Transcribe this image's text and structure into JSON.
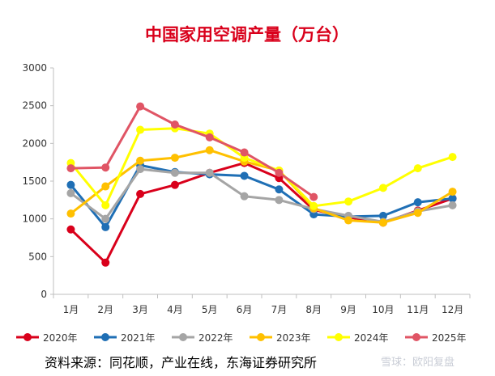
{
  "chart_data": {
    "type": "line",
    "title": "中国家用空调产量（万台）",
    "categories": [
      "1月",
      "2月",
      "3月",
      "4月",
      "5月",
      "6月",
      "7月",
      "8月",
      "9月",
      "10月",
      "11月",
      "12月"
    ],
    "ylim": [
      0,
      3000
    ],
    "yticks": [
      0,
      500,
      1000,
      1500,
      2000,
      2500,
      3000
    ],
    "ytick_labels": [
      "0",
      "500",
      "1000",
      "1500",
      "2000",
      "2500",
      "3000"
    ],
    "xlabel": "",
    "ylabel": "",
    "grid": false,
    "legend_position": "bottom",
    "series": [
      {
        "name": "2020年",
        "color": "#d9001b",
        "values": [
          860,
          420,
          1330,
          1450,
          1610,
          1740,
          1540,
          1120,
          1020,
          950,
          1110,
          1270
        ]
      },
      {
        "name": "2021年",
        "color": "#1f6fb5",
        "values": [
          1450,
          890,
          1710,
          1620,
          1590,
          1570,
          1390,
          1060,
          1030,
          1040,
          1220,
          1270
        ]
      },
      {
        "name": "2022年",
        "color": "#a5a5a5",
        "values": [
          1340,
          1000,
          1660,
          1610,
          1610,
          1300,
          1250,
          1130,
          1040,
          960,
          1100,
          1180
        ]
      },
      {
        "name": "2023年",
        "color": "#ffc000",
        "values": [
          1070,
          1430,
          1770,
          1810,
          1910,
          1760,
          1640,
          1140,
          980,
          950,
          1080,
          1360
        ]
      },
      {
        "name": "2024年",
        "color": "#ffff00",
        "values": [
          1740,
          1180,
          2180,
          2200,
          2130,
          1810,
          1640,
          1170,
          1230,
          1410,
          1670,
          1820
        ]
      },
      {
        "name": "2025年",
        "color": "#e05565",
        "values": [
          1670,
          1680,
          2490,
          2250,
          2080,
          1880,
          1610,
          1290,
          null,
          null,
          null,
          null
        ]
      }
    ]
  },
  "source": "资料来源：同花顺，产业在线，东海证券研究所",
  "watermark": "雪球：欧阳复盘"
}
